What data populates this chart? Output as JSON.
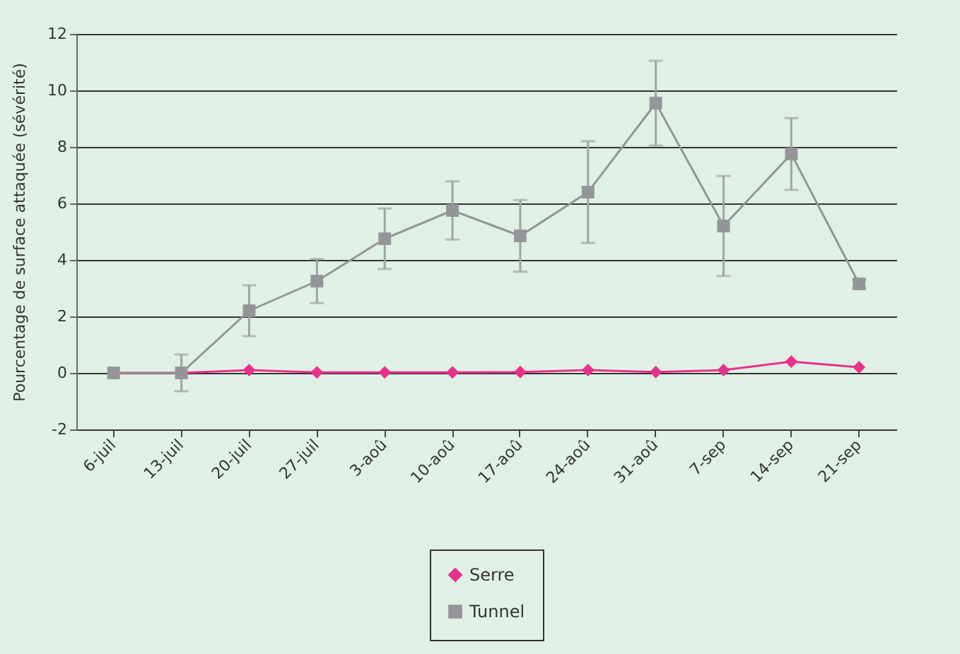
{
  "chart_data": {
    "type": "line",
    "ylabel": "Pourcentage de surface attaquée (sévérité)",
    "categories": [
      "6-juil",
      "13-juil",
      "20-juil",
      "27-juil",
      "3-aoû",
      "10-aoû",
      "17-aoû",
      "24-aoû",
      "31-aoû",
      "7-sep",
      "14-sep",
      "21-sep"
    ],
    "series": [
      {
        "name": "Serre",
        "color": "#e8318a",
        "marker": "diamond",
        "values": [
          0,
          0,
          0.1,
          0.02,
          0.02,
          0.02,
          0.03,
          0.1,
          0.03,
          0.1,
          0.4,
          0.2
        ]
      },
      {
        "name": "Tunnel",
        "color": "#939598",
        "marker": "square",
        "values": [
          0,
          0,
          2.2,
          3.25,
          4.75,
          5.75,
          4.85,
          6.4,
          9.55,
          5.2,
          7.75,
          3.15
        ],
        "errors": [
          null,
          0.65,
          0.9,
          0.78,
          1.07,
          1.03,
          1.27,
          1.8,
          1.5,
          1.77,
          1.27,
          0.15
        ]
      }
    ],
    "ylim": [
      -2,
      12
    ],
    "yticks": [
      -2,
      0,
      2,
      4,
      6,
      8,
      10,
      12
    ],
    "grid": "y",
    "legend": "bottom"
  }
}
